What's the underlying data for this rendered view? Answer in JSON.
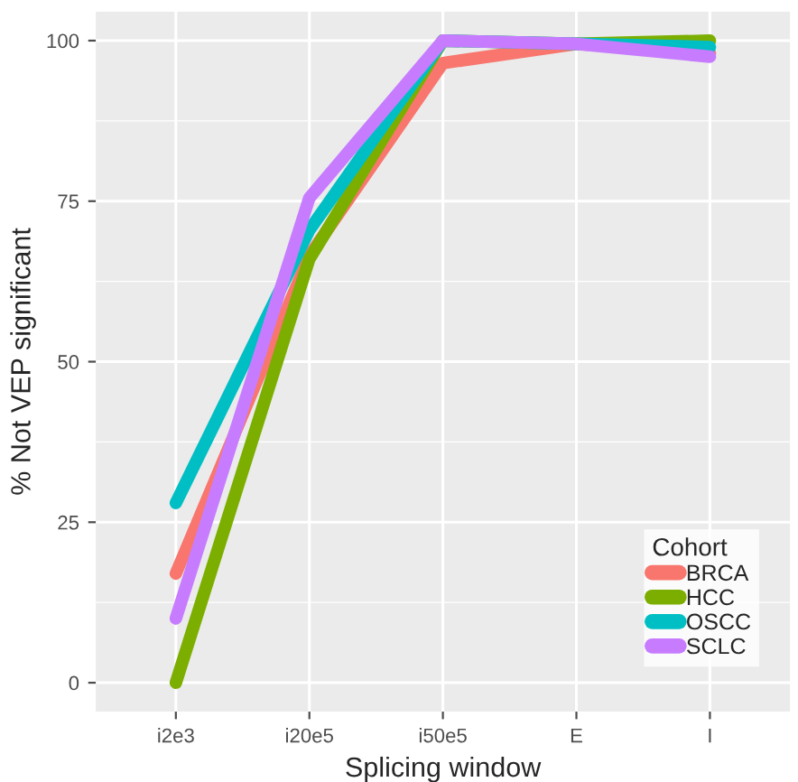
{
  "chart_data": {
    "type": "line",
    "xlabel": "Splicing window",
    "ylabel": "% Not VEP significant",
    "legend_title": "Cohort",
    "categories": [
      "i2e3",
      "i20e5",
      "i50e5",
      "E",
      "I"
    ],
    "series": [
      {
        "name": "BRCA",
        "color": "#f8766d",
        "values": [
          17,
          66.5,
          96.5,
          99.5,
          98
        ]
      },
      {
        "name": "HCC",
        "color": "#7cae00",
        "values": [
          0,
          66,
          100,
          99.5,
          100
        ]
      },
      {
        "name": "OSCC",
        "color": "#00bfc4",
        "values": [
          28,
          70.5,
          100,
          99.5,
          99
        ]
      },
      {
        "name": "SCLC",
        "color": "#c77cff",
        "values": [
          10,
          75.5,
          100,
          99.5,
          97.5
        ]
      }
    ],
    "ylim": [
      -4.5,
      104.5
    ],
    "yticks": [
      0,
      25,
      50,
      75,
      100
    ],
    "grid": true,
    "legend": "bottom right"
  }
}
